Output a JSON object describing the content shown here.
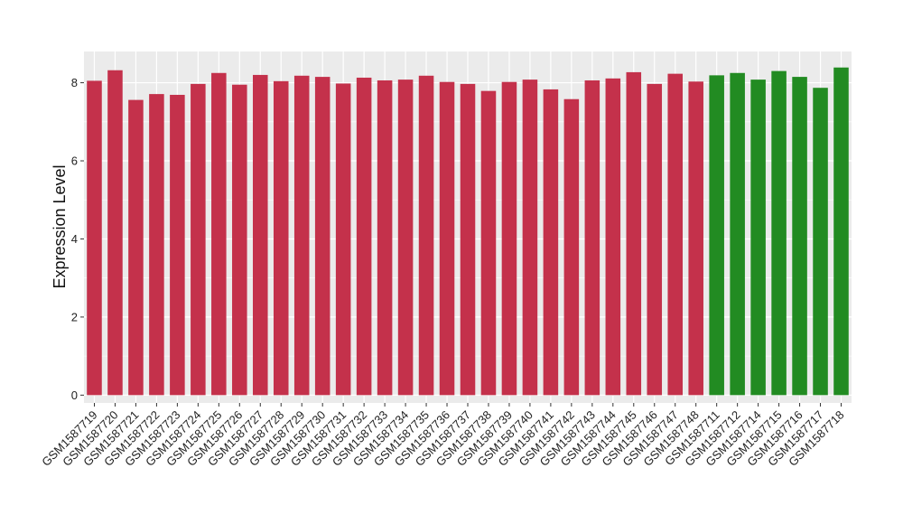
{
  "chart_data": {
    "type": "bar",
    "title": "",
    "xlabel": "",
    "ylabel": "Expression Level",
    "ylim": [
      -0.2,
      8.8
    ],
    "yticks": [
      0,
      2,
      4,
      6,
      8
    ],
    "grid": true,
    "legend": "none",
    "colors": {
      "group_a": "#c4314b",
      "group_b": "#228b22",
      "panel": "#ebebeb",
      "grid": "#ffffff"
    },
    "categories": [
      "GSM1587719",
      "GSM1587720",
      "GSM1587721",
      "GSM1587722",
      "GSM1587723",
      "GSM1587724",
      "GSM1587725",
      "GSM1587726",
      "GSM1587727",
      "GSM1587728",
      "GSM1587729",
      "GSM1587730",
      "GSM1587731",
      "GSM1587732",
      "GSM1587733",
      "GSM1587734",
      "GSM1587735",
      "GSM1587736",
      "GSM1587737",
      "GSM1587738",
      "GSM1587739",
      "GSM1587740",
      "GSM1587741",
      "GSM1587742",
      "GSM1587743",
      "GSM1587744",
      "GSM1587745",
      "GSM1587746",
      "GSM1587747",
      "GSM1587748",
      "GSM1587711",
      "GSM1587712",
      "GSM1587714",
      "GSM1587715",
      "GSM1587716",
      "GSM1587717",
      "GSM1587718"
    ],
    "values": [
      8.05,
      8.32,
      7.56,
      7.71,
      7.69,
      7.97,
      8.25,
      7.95,
      8.2,
      8.04,
      8.18,
      8.15,
      7.98,
      8.13,
      8.06,
      8.08,
      8.18,
      8.02,
      7.97,
      7.79,
      8.02,
      8.08,
      7.83,
      7.58,
      8.06,
      8.11,
      8.27,
      7.97,
      8.23,
      8.03,
      8.19,
      8.25,
      8.08,
      8.3,
      8.15,
      7.87,
      8.39
    ],
    "groups": [
      "a",
      "a",
      "a",
      "a",
      "a",
      "a",
      "a",
      "a",
      "a",
      "a",
      "a",
      "a",
      "a",
      "a",
      "a",
      "a",
      "a",
      "a",
      "a",
      "a",
      "a",
      "a",
      "a",
      "a",
      "a",
      "a",
      "a",
      "a",
      "a",
      "a",
      "b",
      "b",
      "b",
      "b",
      "b",
      "b",
      "b"
    ]
  }
}
